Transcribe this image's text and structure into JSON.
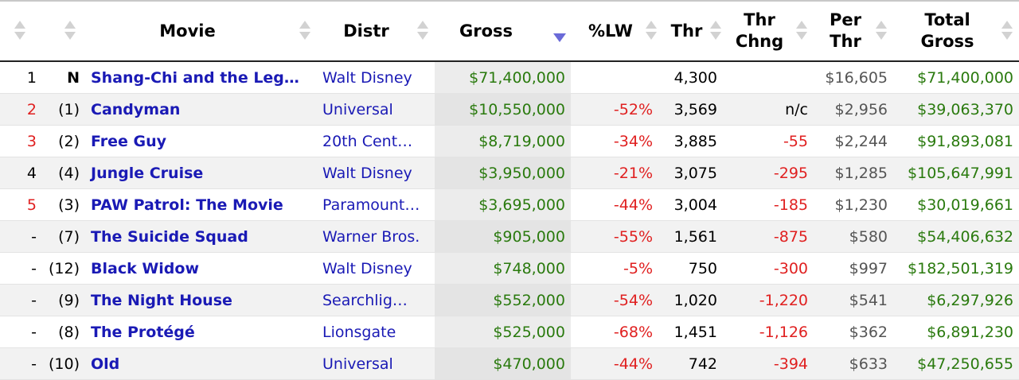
{
  "headers": {
    "rank": "",
    "lw": "",
    "movie": "Movie",
    "distr": "Distr",
    "gross": "Gross",
    "pct_lw": "%LW",
    "thr": "Thr",
    "thr_chng": "Thr Chng",
    "per_thr": "Per Thr",
    "total": "Total Gross"
  },
  "sort_icon": "sort-arrows-icon",
  "active_sort_icon": "sort-descending-icon",
  "colors": {
    "link": "#1a1ab5",
    "positive": "#2a7a0e",
    "negative": "#e02020"
  },
  "rows": [
    {
      "rank": "1",
      "lw": "N",
      "movie": "Shang-Chi and the Leg…",
      "distr": "Walt Disney",
      "gross": "$71,400,000",
      "pct_lw": "",
      "thr": "4,300",
      "thr_chng": "",
      "per_thr": "$16,605",
      "total": "$71,400,000",
      "rank_red": false
    },
    {
      "rank": "2",
      "lw": "(1)",
      "movie": "Candyman",
      "distr": "Universal",
      "gross": "$10,550,000",
      "pct_lw": "-52%",
      "thr": "3,569",
      "thr_chng": "n/c",
      "per_thr": "$2,956",
      "total": "$39,063,370",
      "rank_red": true
    },
    {
      "rank": "3",
      "lw": "(2)",
      "movie": "Free Guy",
      "distr": "20th Cent…",
      "gross": "$8,719,000",
      "pct_lw": "-34%",
      "thr": "3,885",
      "thr_chng": "-55",
      "per_thr": "$2,244",
      "total": "$91,893,081",
      "rank_red": true
    },
    {
      "rank": "4",
      "lw": "(4)",
      "movie": "Jungle Cruise",
      "distr": "Walt Disney",
      "gross": "$3,950,000",
      "pct_lw": "-21%",
      "thr": "3,075",
      "thr_chng": "-295",
      "per_thr": "$1,285",
      "total": "$105,647,991",
      "rank_red": false
    },
    {
      "rank": "5",
      "lw": "(3)",
      "movie": "PAW Patrol: The Movie",
      "distr": "Paramount…",
      "gross": "$3,695,000",
      "pct_lw": "-44%",
      "thr": "3,004",
      "thr_chng": "-185",
      "per_thr": "$1,230",
      "total": "$30,019,661",
      "rank_red": true
    },
    {
      "rank": "-",
      "lw": "(7)",
      "movie": "The Suicide Squad",
      "distr": "Warner Bros.",
      "gross": "$905,000",
      "pct_lw": "-55%",
      "thr": "1,561",
      "thr_chng": "-875",
      "per_thr": "$580",
      "total": "$54,406,632",
      "rank_red": false
    },
    {
      "rank": "-",
      "lw": "(12)",
      "movie": "Black Widow",
      "distr": "Walt Disney",
      "gross": "$748,000",
      "pct_lw": "-5%",
      "thr": "750",
      "thr_chng": "-300",
      "per_thr": "$997",
      "total": "$182,501,319",
      "rank_red": false
    },
    {
      "rank": "-",
      "lw": "(9)",
      "movie": "The Night House",
      "distr": "Searchlig…",
      "gross": "$552,000",
      "pct_lw": "-54%",
      "thr": "1,020",
      "thr_chng": "-1,220",
      "per_thr": "$541",
      "total": "$6,297,926",
      "rank_red": false
    },
    {
      "rank": "-",
      "lw": "(8)",
      "movie": "The Protégé",
      "distr": "Lionsgate",
      "gross": "$525,000",
      "pct_lw": "-68%",
      "thr": "1,451",
      "thr_chng": "-1,126",
      "per_thr": "$362",
      "total": "$6,891,230",
      "rank_red": false
    },
    {
      "rank": "-",
      "lw": "(10)",
      "movie": "Old",
      "distr": "Universal",
      "gross": "$470,000",
      "pct_lw": "-44%",
      "thr": "742",
      "thr_chng": "-394",
      "per_thr": "$633",
      "total": "$47,250,655",
      "rank_red": false
    }
  ]
}
